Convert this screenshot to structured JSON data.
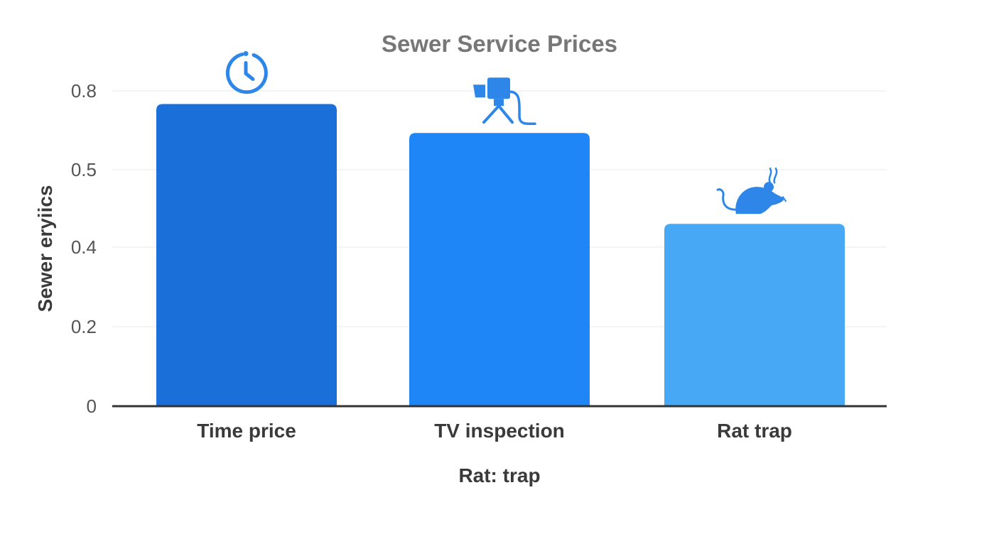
{
  "chart_data": {
    "type": "bar",
    "title": "Sewer Service Prices",
    "xlabel": "Rat: trap",
    "ylabel": "Sewer eryiics",
    "categories": [
      "Time price",
      "TV inspection",
      "Rat trap"
    ],
    "values": [
      0.75,
      0.64,
      0.43
    ],
    "ylim": [
      0,
      0.8
    ],
    "y_ticks": [
      0,
      0.2,
      0.4,
      0.5,
      0.8
    ],
    "y_tick_labels": [
      "0",
      "0.2",
      "0.4",
      "0.5",
      "0.8"
    ],
    "grid": true,
    "legend": "none",
    "bar_colors": [
      "#1a6fd8",
      "#1f86f7",
      "#47a8f6"
    ],
    "bar_icons": [
      "clock-icon",
      "camera-icon",
      "rat-icon"
    ]
  },
  "colors": {
    "title": "#777777",
    "tick_label": "#555555",
    "category_label": "#3a3a3a",
    "axis_title": "#3a3a3a",
    "axis_line": "#333333",
    "grid": "#f0f0f0",
    "icon": "#2d86e8"
  }
}
